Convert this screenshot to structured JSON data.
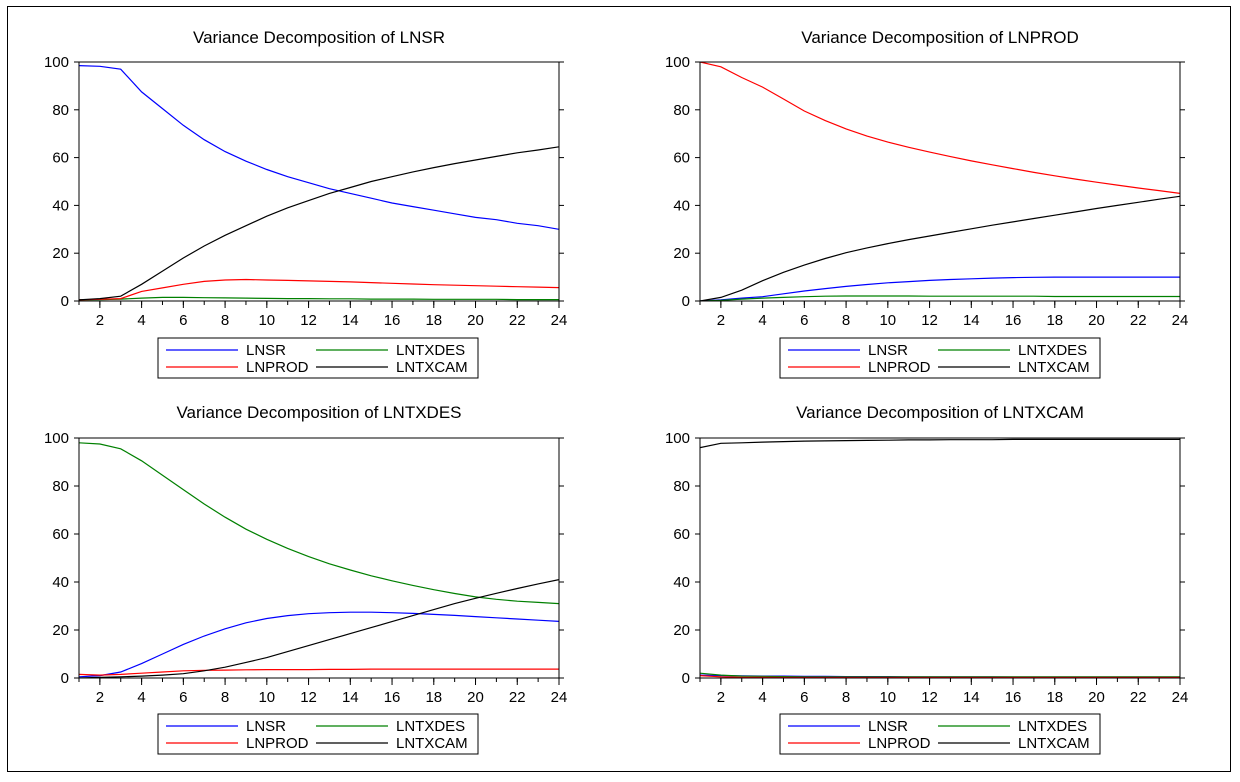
{
  "chart_data": [
    {
      "type": "line",
      "title": "Variance Decomposition of LNSR",
      "xlabel": "",
      "ylabel": "",
      "xlim": [
        1,
        24
      ],
      "ylim": [
        0,
        100
      ],
      "x_ticks": [
        2,
        4,
        6,
        8,
        10,
        12,
        14,
        16,
        18,
        20,
        22,
        24
      ],
      "y_ticks": [
        0,
        20,
        40,
        60,
        80,
        100
      ],
      "grid": false,
      "legend_position": "bottom",
      "x": [
        1,
        2,
        3,
        4,
        5,
        6,
        7,
        8,
        9,
        10,
        11,
        12,
        13,
        14,
        15,
        16,
        17,
        18,
        19,
        20,
        21,
        22,
        23,
        24
      ],
      "series": [
        {
          "name": "LNSR",
          "color": "#0000ff",
          "values": [
            98.5,
            98.2,
            97.0,
            87.5,
            80.5,
            73.5,
            67.5,
            62.5,
            58.5,
            55,
            52,
            49.5,
            47,
            45,
            43,
            41,
            39.5,
            38,
            36.5,
            35,
            34,
            32.5,
            31.5,
            30
          ]
        },
        {
          "name": "LNTXDES",
          "color": "#008000",
          "values": [
            0.5,
            0.6,
            0.8,
            1.2,
            1.5,
            1.5,
            1.4,
            1.3,
            1.2,
            1.1,
            1.0,
            1.0,
            0.9,
            0.9,
            0.8,
            0.8,
            0.8,
            0.7,
            0.7,
            0.7,
            0.7,
            0.6,
            0.6,
            0.6
          ]
        },
        {
          "name": "LNPROD",
          "color": "#ff0000",
          "values": [
            0.5,
            0.7,
            1.0,
            4.0,
            5.5,
            7.0,
            8.2,
            8.8,
            9.0,
            8.8,
            8.6,
            8.4,
            8.2,
            8.0,
            7.7,
            7.4,
            7.1,
            6.8,
            6.6,
            6.4,
            6.2,
            6.0,
            5.8,
            5.6
          ]
        },
        {
          "name": "LNTXCAM",
          "color": "#000000",
          "values": [
            0.5,
            1.0,
            2.0,
            7.0,
            12.5,
            18.0,
            23.0,
            27.5,
            31.5,
            35.5,
            39,
            42,
            45,
            47.5,
            50,
            52,
            54,
            55.8,
            57.5,
            59,
            60.5,
            62,
            63.2,
            64.5
          ]
        }
      ]
    },
    {
      "type": "line",
      "title": "Variance Decomposition of LNPROD",
      "xlabel": "",
      "ylabel": "",
      "xlim": [
        1,
        24
      ],
      "ylim": [
        0,
        100
      ],
      "x_ticks": [
        2,
        4,
        6,
        8,
        10,
        12,
        14,
        16,
        18,
        20,
        22,
        24
      ],
      "y_ticks": [
        0,
        20,
        40,
        60,
        80,
        100
      ],
      "grid": false,
      "legend_position": "bottom",
      "x": [
        1,
        2,
        3,
        4,
        5,
        6,
        7,
        8,
        9,
        10,
        11,
        12,
        13,
        14,
        15,
        16,
        17,
        18,
        19,
        20,
        21,
        22,
        23,
        24
      ],
      "series": [
        {
          "name": "LNSR",
          "color": "#0000ff",
          "values": [
            0,
            0.5,
            1.2,
            1.8,
            3.0,
            4.2,
            5.2,
            6.1,
            6.9,
            7.6,
            8.1,
            8.6,
            9.0,
            9.3,
            9.6,
            9.8,
            9.9,
            10.0,
            10.0,
            10.0,
            10.0,
            10.0,
            10.0,
            10.0
          ]
        },
        {
          "name": "LNTXDES",
          "color": "#008000",
          "values": [
            0,
            0.3,
            0.8,
            1.2,
            1.5,
            1.8,
            2.0,
            2.1,
            2.1,
            2.1,
            2.1,
            2.0,
            2.0,
            2.0,
            2.0,
            2.0,
            2.0,
            1.9,
            1.9,
            1.9,
            1.9,
            1.9,
            1.9,
            1.9
          ]
        },
        {
          "name": "LNPROD",
          "color": "#ff0000",
          "values": [
            100,
            98,
            93.5,
            89.5,
            84.5,
            79.5,
            75.5,
            72,
            69,
            66.5,
            64.3,
            62.3,
            60.4,
            58.6,
            57,
            55.4,
            53.8,
            52.4,
            51,
            49.7,
            48.5,
            47.3,
            46.2,
            45
          ]
        },
        {
          "name": "LNTXCAM",
          "color": "#000000",
          "values": [
            0,
            1.5,
            4.5,
            8.5,
            12,
            15,
            17.8,
            20.2,
            22.2,
            24,
            25.7,
            27.2,
            28.7,
            30.2,
            31.7,
            33.1,
            34.5,
            35.9,
            37.3,
            38.7,
            40,
            41.3,
            42.6,
            43.8
          ]
        }
      ]
    },
    {
      "type": "line",
      "title": "Variance Decomposition of LNTXDES",
      "xlabel": "",
      "ylabel": "",
      "xlim": [
        1,
        24
      ],
      "ylim": [
        0,
        100
      ],
      "x_ticks": [
        2,
        4,
        6,
        8,
        10,
        12,
        14,
        16,
        18,
        20,
        22,
        24
      ],
      "y_ticks": [
        0,
        20,
        40,
        60,
        80,
        100
      ],
      "grid": false,
      "legend_position": "bottom",
      "x": [
        1,
        2,
        3,
        4,
        5,
        6,
        7,
        8,
        9,
        10,
        11,
        12,
        13,
        14,
        15,
        16,
        17,
        18,
        19,
        20,
        21,
        22,
        23,
        24
      ],
      "series": [
        {
          "name": "LNSR",
          "color": "#0000ff",
          "values": [
            0.5,
            1.0,
            2.5,
            6.0,
            10.0,
            14.0,
            17.5,
            20.5,
            23.0,
            24.8,
            26.0,
            26.8,
            27.2,
            27.4,
            27.4,
            27.2,
            26.9,
            26.5,
            26.1,
            25.6,
            25.1,
            24.6,
            24.1,
            23.6
          ]
        },
        {
          "name": "LNTXDES",
          "color": "#008000",
          "values": [
            98,
            97.5,
            95.5,
            90.5,
            84.5,
            78.5,
            72.5,
            67.0,
            62.0,
            57.8,
            54.0,
            50.6,
            47.6,
            45.0,
            42.6,
            40.5,
            38.6,
            36.8,
            35.2,
            33.8,
            32.8,
            32.0,
            31.5,
            31.0
          ]
        },
        {
          "name": "LNPROD",
          "color": "#ff0000",
          "values": [
            1.5,
            1.2,
            1.5,
            2.0,
            2.5,
            3.0,
            3.2,
            3.3,
            3.4,
            3.5,
            3.5,
            3.5,
            3.6,
            3.6,
            3.7,
            3.7,
            3.7,
            3.7,
            3.7,
            3.7,
            3.7,
            3.7,
            3.7,
            3.7
          ]
        },
        {
          "name": "LNTXCAM",
          "color": "#000000",
          "values": [
            0,
            0.3,
            0.5,
            0.8,
            1.2,
            1.8,
            3.0,
            4.5,
            6.5,
            8.5,
            11.0,
            13.5,
            16.0,
            18.5,
            21.0,
            23.5,
            26.0,
            28.5,
            31.0,
            33.2,
            35.3,
            37.3,
            39.2,
            41.0
          ]
        }
      ]
    },
    {
      "type": "line",
      "title": "Variance Decomposition of LNTXCAM",
      "xlabel": "",
      "ylabel": "",
      "xlim": [
        1,
        24
      ],
      "ylim": [
        0,
        100
      ],
      "x_ticks": [
        2,
        4,
        6,
        8,
        10,
        12,
        14,
        16,
        18,
        20,
        22,
        24
      ],
      "y_ticks": [
        0,
        20,
        40,
        60,
        80,
        100
      ],
      "grid": false,
      "legend_position": "bottom",
      "x": [
        1,
        2,
        3,
        4,
        5,
        6,
        7,
        8,
        9,
        10,
        11,
        12,
        13,
        14,
        15,
        16,
        17,
        18,
        19,
        20,
        21,
        22,
        23,
        24
      ],
      "series": [
        {
          "name": "LNSR",
          "color": "#0000ff",
          "values": [
            1.2,
            1.0,
            0.9,
            0.8,
            0.8,
            0.7,
            0.7,
            0.6,
            0.6,
            0.6,
            0.5,
            0.5,
            0.5,
            0.5,
            0.5,
            0.4,
            0.4,
            0.4,
            0.4,
            0.4,
            0.4,
            0.4,
            0.4,
            0.4
          ]
        },
        {
          "name": "LNTXDES",
          "color": "#008000",
          "values": [
            2.0,
            1.2,
            0.8,
            0.7,
            0.6,
            0.5,
            0.5,
            0.5,
            0.5,
            0.5,
            0.5,
            0.5,
            0.5,
            0.5,
            0.5,
            0.5,
            0.5,
            0.5,
            0.5,
            0.5,
            0.5,
            0.5,
            0.5,
            0.5
          ]
        },
        {
          "name": "LNPROD",
          "color": "#ff0000",
          "values": [
            1.0,
            0.5,
            0.3,
            0.3,
            0.2,
            0.2,
            0.2,
            0.2,
            0.2,
            0.2,
            0.2,
            0.2,
            0.2,
            0.2,
            0.2,
            0.2,
            0.2,
            0.2,
            0.2,
            0.2,
            0.2,
            0.2,
            0.2,
            0.2
          ]
        },
        {
          "name": "LNTXCAM",
          "color": "#000000",
          "values": [
            96,
            97.8,
            98.0,
            98.3,
            98.5,
            98.7,
            98.8,
            98.9,
            99.0,
            99.1,
            99.2,
            99.2,
            99.3,
            99.3,
            99.3,
            99.4,
            99.4,
            99.4,
            99.4,
            99.4,
            99.4,
            99.4,
            99.4,
            99.4
          ]
        }
      ]
    }
  ]
}
